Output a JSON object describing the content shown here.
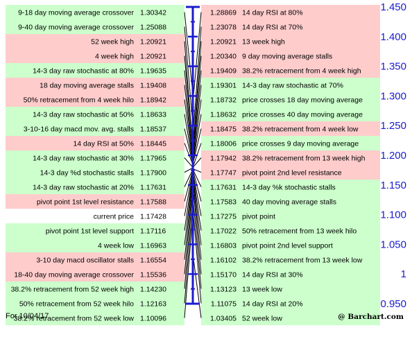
{
  "chart_data": {
    "type": "table",
    "ylim": [
      0.95,
      1.45
    ],
    "yticks": [
      "1.450",
      "1.400",
      "1.350",
      "1.300",
      "1.250",
      "1.200",
      "1.150",
      "1.100",
      "1.050",
      "1",
      "0.950"
    ],
    "y_values": [
      1.45,
      1.4,
      1.35,
      1.3,
      1.25,
      1.2,
      1.15,
      1.1,
      1.05,
      1.0,
      0.95
    ],
    "pivot_value": 1.17428,
    "colors": {
      "red_row": "#ffcccc",
      "green_row": "#ccffcc",
      "white_row": "#ffffff",
      "axis": "#1b1bcc",
      "line": "#000000"
    },
    "left_rows": [
      {
        "label": "9-18 day moving average crossover",
        "value": "1.30342",
        "color": "green"
      },
      {
        "label": "9-40 day moving average crossover",
        "value": "1.25088",
        "color": "green"
      },
      {
        "label": "52 week high",
        "value": "1.20921",
        "color": "red"
      },
      {
        "label": "4 week high",
        "value": "1.20921",
        "color": "red"
      },
      {
        "label": "14-3 day raw stochastic at 80%",
        "value": "1.19635",
        "color": "green"
      },
      {
        "label": "18 day moving average stalls",
        "value": "1.19408",
        "color": "red"
      },
      {
        "label": "50% retracement from 4 week hilo",
        "value": "1.18942",
        "color": "red"
      },
      {
        "label": "14-3 day raw stochastic at 50%",
        "value": "1.18633",
        "color": "green"
      },
      {
        "label": "3-10-16 day macd mov. avg. stalls",
        "value": "1.18537",
        "color": "green"
      },
      {
        "label": "14 day RSI at 50%",
        "value": "1.18445",
        "color": "red"
      },
      {
        "label": "14-3 day raw stochastic at 30%",
        "value": "1.17965",
        "color": "green"
      },
      {
        "label": "14-3 day %d stochastic stalls",
        "value": "1.17900",
        "color": "green"
      },
      {
        "label": "14-3 day raw stochastic at 20%",
        "value": "1.17631",
        "color": "green"
      },
      {
        "label": "pivot point 1st level resistance",
        "value": "1.17588",
        "color": "red"
      },
      {
        "label": "current price",
        "value": "1.17428",
        "color": "white"
      },
      {
        "label": "pivot point 1st level support",
        "value": "1.17116",
        "color": "green"
      },
      {
        "label": "4 week low",
        "value": "1.16963",
        "color": "green"
      },
      {
        "label": "3-10 day macd oscillator stalls",
        "value": "1.16554",
        "color": "red"
      },
      {
        "label": "18-40 day moving average crossover",
        "value": "1.15536",
        "color": "red"
      },
      {
        "label": "38.2% retracement from 52 week high",
        "value": "1.14230",
        "color": "green"
      },
      {
        "label": "50% retracement from 52 week hilo",
        "value": "1.12163",
        "color": "green"
      },
      {
        "label": "38.2% retracement from 52 week low",
        "value": "1.10096",
        "color": "green"
      }
    ],
    "right_rows": [
      {
        "label": "14 day RSI at 80%",
        "value": "1.28869",
        "color": "red"
      },
      {
        "label": "14 day RSI at 70%",
        "value": "1.23078",
        "color": "red"
      },
      {
        "label": "13 week high",
        "value": "1.20921",
        "color": "red"
      },
      {
        "label": "9 day moving average stalls",
        "value": "1.20340",
        "color": "red"
      },
      {
        "label": "38.2% retracement from 4 week high",
        "value": "1.19409",
        "color": "red"
      },
      {
        "label": "14-3 day raw stochastic at 70%",
        "value": "1.19301",
        "color": "green"
      },
      {
        "label": "price crosses 18 day moving average",
        "value": "1.18732",
        "color": "green"
      },
      {
        "label": "price crosses 40 day moving average",
        "value": "1.18632",
        "color": "green"
      },
      {
        "label": "38.2% retracement from 4 week low",
        "value": "1.18475",
        "color": "red"
      },
      {
        "label": "price crosses 9 day moving average",
        "value": "1.18006",
        "color": "green"
      },
      {
        "label": "38.2% retracement from 13 week high",
        "value": "1.17942",
        "color": "red"
      },
      {
        "label": "pivot point 2nd level resistance",
        "value": "1.17747",
        "color": "red"
      },
      {
        "label": "14-3 day %k stochastic stalls",
        "value": "1.17631",
        "color": "green"
      },
      {
        "label": "40 day moving average stalls",
        "value": "1.17583",
        "color": "green"
      },
      {
        "label": "pivot point",
        "value": "1.17275",
        "color": "green"
      },
      {
        "label": "50% retracement from 13 week hilo",
        "value": "1.17022",
        "color": "green"
      },
      {
        "label": "pivot point 2nd level support",
        "value": "1.16803",
        "color": "green"
      },
      {
        "label": "38.2% retracement from 13 week low",
        "value": "1.16102",
        "color": "green"
      },
      {
        "label": "14 day RSI at 30%",
        "value": "1.15170",
        "color": "green"
      },
      {
        "label": "13 week low",
        "value": "1.13123",
        "color": "green"
      },
      {
        "label": "14 day RSI at 20%",
        "value": "1.11075",
        "color": "green"
      },
      {
        "label": "52 week low",
        "value": "1.03405",
        "color": "green"
      }
    ]
  },
  "footer": {
    "date": "For 10/04/17",
    "brand": "@ Barchart.com"
  }
}
